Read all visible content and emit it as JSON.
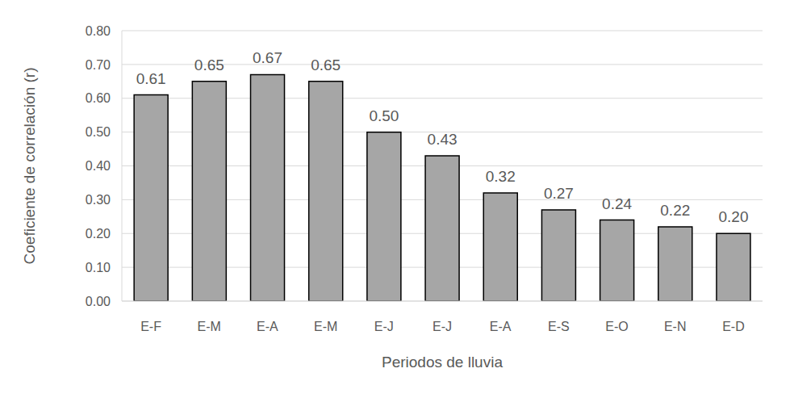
{
  "chart_data": {
    "type": "bar",
    "x_label": "Periodos de lluvia",
    "y_label": "Coeficiente de correlación (r)",
    "categories": [
      "E-F",
      "E-M",
      "E-A",
      "E-M",
      "E-J",
      "E-J",
      "E-A",
      "E-S",
      "E-O",
      "E-N",
      "E-D"
    ],
    "values": [
      0.61,
      0.65,
      0.67,
      0.65,
      0.5,
      0.43,
      0.32,
      0.27,
      0.24,
      0.22,
      0.2
    ],
    "value_labels": [
      "0.61",
      "0.65",
      "0.67",
      "0.65",
      "0.50",
      "0.43",
      "0.32",
      "0.27",
      "0.24",
      "0.22",
      "0.20"
    ],
    "color": "#a6a6a6",
    "ylim": [
      0,
      0.8
    ],
    "yticks": [
      {
        "value": 0,
        "label": "0.00"
      },
      {
        "value": 0.1,
        "label": "0.10"
      },
      {
        "value": 0.2,
        "label": "0.20"
      },
      {
        "value": 0.3,
        "label": "0.30"
      },
      {
        "value": 0.4,
        "label": "0.40"
      },
      {
        "value": 0.5,
        "label": "0.50"
      },
      {
        "value": 0.6,
        "label": "0.60"
      },
      {
        "value": 0.7,
        "label": "0.70"
      },
      {
        "value": 0.8,
        "label": "0.80"
      }
    ],
    "grid": true,
    "data_labels": true
  }
}
